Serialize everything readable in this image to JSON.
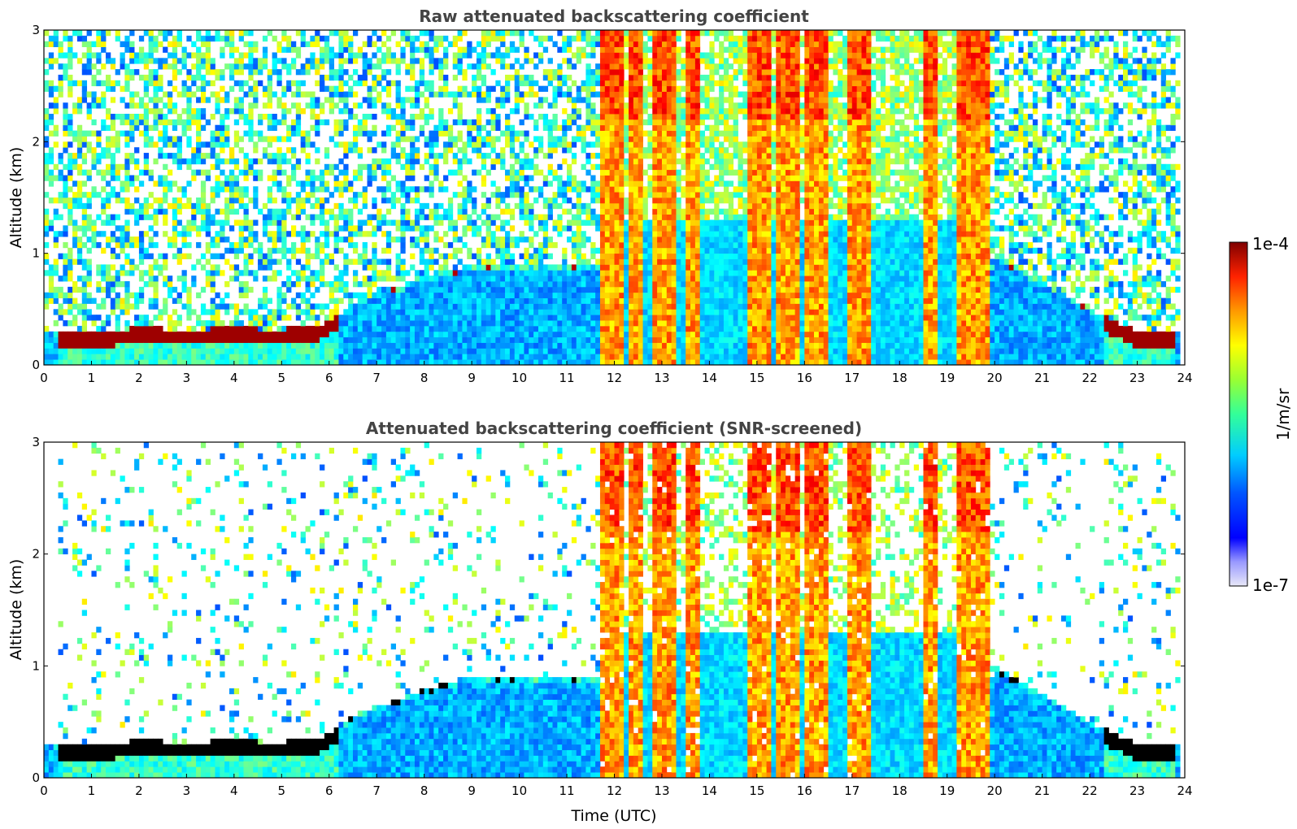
{
  "chart_data": [
    {
      "type": "heatmap",
      "title": "Raw attenuated backscattering coefficient",
      "xlabel": "",
      "ylabel": "Altitude (km)",
      "xlim": [
        0,
        24
      ],
      "ylim": [
        0,
        3
      ],
      "xticks": [
        0,
        1,
        2,
        3,
        4,
        5,
        6,
        7,
        8,
        9,
        10,
        11,
        12,
        13,
        14,
        15,
        16,
        17,
        18,
        19,
        20,
        21,
        22,
        23,
        24
      ],
      "yticks": [
        0,
        1,
        2,
        3
      ],
      "colormap": "jet",
      "color_scale": "log",
      "variant": "raw",
      "layer_top_km": [
        [
          0,
          0.3
        ],
        [
          0.3,
          0.28
        ],
        [
          1,
          0.3
        ],
        [
          2,
          0.33
        ],
        [
          3,
          0.32
        ],
        [
          4,
          0.33
        ],
        [
          5,
          0.32
        ],
        [
          5.8,
          0.36
        ],
        [
          6.2,
          0.45
        ],
        [
          6.5,
          0.55
        ],
        [
          7,
          0.65
        ],
        [
          7.5,
          0.7
        ],
        [
          8,
          0.8
        ],
        [
          9,
          0.9
        ],
        [
          10,
          0.92
        ],
        [
          11,
          0.88
        ],
        [
          11.7,
          0.9
        ]
      ],
      "cloud_bands_utc": [
        [
          11.7,
          12.2
        ],
        [
          12.3,
          12.6
        ],
        [
          12.8,
          13.3
        ],
        [
          13.5,
          13.8
        ],
        [
          14.8,
          15.3
        ],
        [
          15.4,
          15.9
        ],
        [
          16.0,
          16.5
        ],
        [
          16.9,
          17.4
        ],
        [
          18.5,
          18.8
        ],
        [
          19.2,
          19.9
        ]
      ],
      "colorbar": {
        "min_label": "1e-7",
        "max_label": "1e-4",
        "label": "1/m/sr",
        "vmin": 1e-07,
        "vmax": 0.0001
      }
    },
    {
      "type": "heatmap",
      "title": "Attenuated backscattering coefficient (SNR-screened)",
      "xlabel": "Time (UTC)",
      "ylabel": "Altitude (km)",
      "xlim": [
        0,
        24
      ],
      "ylim": [
        0,
        3
      ],
      "xticks": [
        0,
        1,
        2,
        3,
        4,
        5,
        6,
        7,
        8,
        9,
        10,
        11,
        12,
        13,
        14,
        15,
        16,
        17,
        18,
        19,
        20,
        21,
        22,
        23,
        24
      ],
      "yticks": [
        0,
        1,
        2,
        3
      ],
      "colormap": "jet",
      "color_scale": "log",
      "variant": "screened"
    }
  ],
  "colors": {
    "boundary_layer": "#8b0000",
    "screened_layer": "#000000",
    "background": "#ffffff",
    "title": "#444444"
  }
}
